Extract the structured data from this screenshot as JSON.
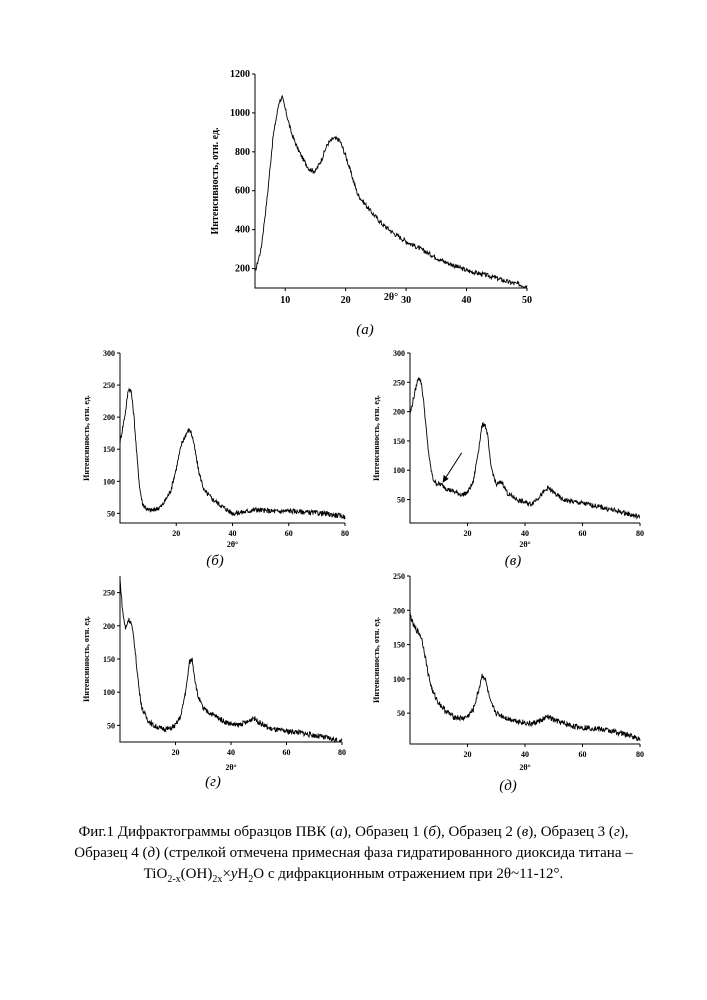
{
  "figure": {
    "caption_lines": [
      [
        "Фиг.1  Дифрактограммы образцов ПВК (",
        {
          "i": "а"
        },
        "), Образец 1 (",
        {
          "i": "б"
        },
        "), Образец 2 (",
        {
          "i": "в"
        },
        "), Образец 3  (",
        {
          "i": "г"
        },
        "),"
      ],
      [
        "Образец 4  (",
        {
          "i": "д"
        },
        ")  (стрелкой отмечена примесная фаза гидратированного диоксида титана –"
      ],
      [
        "TiO",
        {
          "sub": "2-x"
        },
        "(OH)",
        {
          "sub": "2x"
        },
        "×",
        {
          "i": "y"
        },
        "H",
        {
          "sub": "2"
        },
        "O  с дифракционным отражением при 2θ~11-12°."
      ]
    ]
  },
  "chart_data": [
    {
      "id": "a",
      "type": "line",
      "panel_label": "(а)",
      "xlabel": "2θ°",
      "ylabel": "Интенсивность, отн. ед.",
      "xlim": [
        5,
        50
      ],
      "ylim": [
        100,
        1200
      ],
      "xticks": [
        10,
        20,
        30,
        40,
        50
      ],
      "yticks": [
        200,
        400,
        600,
        800,
        1000,
        1200
      ],
      "series": [
        {
          "x": [
            5,
            6,
            7,
            8,
            9,
            9.5,
            10,
            11,
            12,
            13,
            14,
            15,
            16,
            17,
            18,
            19,
            20,
            21,
            22,
            24,
            26,
            28,
            30,
            33,
            36,
            40,
            44,
            47,
            50
          ],
          "y": [
            180,
            300,
            560,
            880,
            1060,
            1080,
            1020,
            900,
            820,
            760,
            710,
            700,
            760,
            840,
            870,
            860,
            780,
            680,
            580,
            500,
            430,
            380,
            340,
            290,
            240,
            190,
            160,
            130,
            110
          ]
        }
      ],
      "noise": 12
    },
    {
      "id": "b",
      "type": "line",
      "panel_label": "(б)",
      "xlabel": "2θ°",
      "ylabel": "Интенсивность, отн. ед.",
      "xlim": [
        0,
        80
      ],
      "ylim": [
        35,
        300
      ],
      "xticks": [
        20,
        40,
        60,
        80
      ],
      "yticks": [
        50,
        100,
        150,
        200,
        250,
        300
      ],
      "series": [
        {
          "x": [
            0,
            2,
            3,
            4,
            5,
            6,
            7,
            8,
            10,
            12,
            15,
            18,
            20,
            22,
            24,
            25,
            26,
            28,
            30,
            33,
            36,
            40,
            44,
            48,
            52,
            56,
            60,
            66,
            72,
            80
          ],
          "y": [
            160,
            210,
            245,
            240,
            200,
            140,
            90,
            65,
            55,
            55,
            62,
            85,
            120,
            160,
            178,
            180,
            165,
            115,
            85,
            72,
            62,
            50,
            52,
            56,
            54,
            53,
            54,
            52,
            50,
            45
          ]
        }
      ],
      "noise": 4
    },
    {
      "id": "c",
      "type": "line",
      "panel_label": "(в)",
      "xlabel": "2θ°",
      "ylabel": "Интенсивность, отн. ед.",
      "xlim": [
        0,
        80
      ],
      "ylim": [
        10,
        300
      ],
      "xticks": [
        20,
        40,
        60,
        80
      ],
      "yticks": [
        50,
        100,
        150,
        200,
        250,
        300
      ],
      "arrow_target": {
        "x": 11,
        "y": 75
      },
      "series": [
        {
          "x": [
            0,
            2,
            3,
            4,
            5,
            6,
            7,
            8,
            9,
            11,
            13,
            16,
            18,
            20,
            22,
            24,
            25,
            26,
            27,
            28,
            30,
            32,
            34,
            38,
            42,
            45,
            48,
            50,
            53,
            57,
            62,
            68,
            74,
            80
          ],
          "y": [
            195,
            240,
            260,
            248,
            205,
            150,
            110,
            85,
            78,
            75,
            68,
            62,
            58,
            62,
            80,
            140,
            175,
            180,
            160,
            110,
            75,
            80,
            60,
            48,
            42,
            55,
            70,
            62,
            50,
            46,
            42,
            35,
            28,
            20
          ]
        }
      ],
      "noise": 4
    },
    {
      "id": "d",
      "type": "line",
      "panel_label": "(г)",
      "xlabel": "2θ°",
      "ylabel": "Интенсивность, отн. ед.",
      "xlim": [
        0,
        80
      ],
      "ylim": [
        25,
        275
      ],
      "xticks": [
        20,
        40,
        60,
        80
      ],
      "yticks": [
        50,
        100,
        150,
        200,
        250
      ],
      "series": [
        {
          "x": [
            0,
            1,
            2,
            3,
            4,
            5,
            6,
            7,
            8,
            10,
            12,
            15,
            18,
            20,
            22,
            24,
            25,
            26,
            27,
            28,
            30,
            34,
            38,
            42,
            46,
            48,
            50,
            54,
            58,
            64,
            70,
            76,
            80
          ],
          "y": [
            270,
            220,
            195,
            210,
            205,
            180,
            140,
            100,
            75,
            58,
            50,
            45,
            45,
            50,
            65,
            110,
            145,
            150,
            120,
            95,
            75,
            65,
            55,
            50,
            55,
            62,
            55,
            45,
            42,
            40,
            35,
            30,
            25
          ]
        }
      ],
      "noise": 4
    },
    {
      "id": "e",
      "type": "line",
      "panel_label": "(д)",
      "xlabel": "2θ°",
      "ylabel": "Интенсивность, отн. ед.",
      "xlim": [
        0,
        80
      ],
      "ylim": [
        5,
        250
      ],
      "xticks": [
        20,
        40,
        60,
        80
      ],
      "yticks": [
        50,
        100,
        150,
        200,
        250
      ],
      "series": [
        {
          "x": [
            0,
            1,
            2,
            3,
            4,
            5,
            6,
            7,
            8,
            10,
            12,
            15,
            18,
            20,
            22,
            24,
            25,
            26,
            27,
            28,
            30,
            34,
            38,
            42,
            46,
            48,
            50,
            54,
            58,
            64,
            70,
            76,
            80
          ],
          "y": [
            195,
            180,
            172,
            168,
            160,
            140,
            115,
            95,
            80,
            65,
            55,
            45,
            42,
            45,
            55,
            85,
            105,
            102,
            85,
            65,
            50,
            42,
            38,
            34,
            40,
            45,
            40,
            34,
            30,
            28,
            24,
            18,
            12
          ]
        }
      ],
      "noise": 4
    }
  ]
}
